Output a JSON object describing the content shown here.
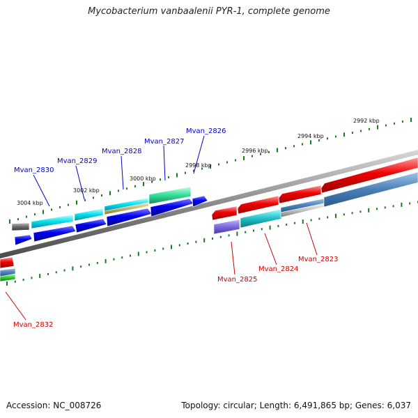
{
  "title": "Mycobacterium vanbaalenii PYR-1, complete genome",
  "footer": {
    "accession": "Accession: NC_008726",
    "topology": "Topology: circular; Length: 6,491,865 bp; Genes: 6,037"
  },
  "scale_labels": [
    "3004 kbp",
    "3002 kbp",
    "3000 kbp",
    "2998 kbp",
    "2996 kbp",
    "2994 kbp",
    "2992 kbp"
  ],
  "genes_top": [
    "Mvan_2830",
    "Mvan_2829",
    "Mvan_2828",
    "Mvan_2827",
    "Mvan_2826"
  ],
  "genes_bottom": [
    "Mvan_2825",
    "Mvan_2824",
    "Mvan_2823",
    "Mvan_2832"
  ],
  "colors": {
    "backbone": "#8a8a8a",
    "ticks": "#1e7a1e",
    "forward_gene": "#0000ee",
    "reverse_gene": "#ee0000",
    "top_label": "#0000cc",
    "bottom_label": "#cc0000"
  }
}
